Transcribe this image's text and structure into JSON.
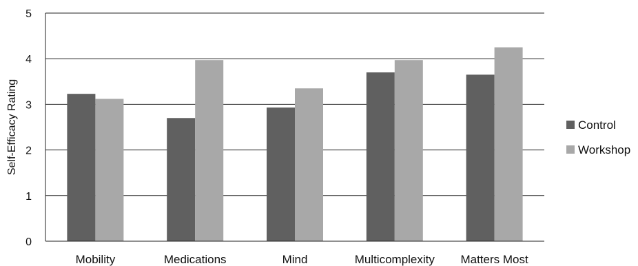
{
  "chart_data": {
    "type": "bar",
    "title": "",
    "xlabel": "",
    "ylabel": "Self-Efficacy Rating",
    "ylim": [
      0,
      5
    ],
    "yticks": [
      "0",
      "1",
      "2",
      "3",
      "4",
      "5"
    ],
    "grid": true,
    "legend_position": "right",
    "categories": [
      "Mobility",
      "Medications",
      "Mind",
      "Multicomplexity",
      "Matters Most"
    ],
    "series": [
      {
        "name": "Control",
        "color": "#606060",
        "values": [
          3.23,
          2.7,
          2.93,
          3.7,
          3.65
        ]
      },
      {
        "name": "Workshop",
        "color": "#a8a8a8",
        "values": [
          3.12,
          3.97,
          3.35,
          3.97,
          4.25
        ]
      }
    ]
  }
}
